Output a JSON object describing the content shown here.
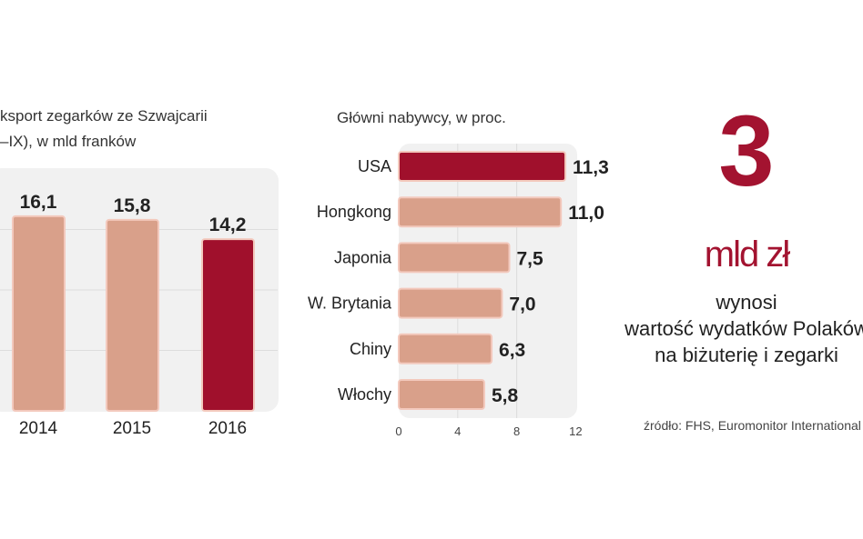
{
  "chart_data": [
    {
      "type": "bar",
      "title": "ksport zegarków ze Szwajcarii",
      "subtitle": "–IX), w mld franków",
      "categories": [
        "2014",
        "2015",
        "2016"
      ],
      "values": [
        16.1,
        15.8,
        14.2
      ],
      "value_labels": [
        "16,1",
        "15,8",
        "14,2"
      ],
      "highlight_index": 2,
      "ylim": [
        0,
        17
      ],
      "gridlines": [
        5,
        10,
        15
      ],
      "grid": true
    },
    {
      "type": "bar",
      "orientation": "horizontal",
      "title": "Główni nabywcy, w proc.",
      "categories": [
        "USA",
        "Hongkong",
        "Japonia",
        "W. Brytania",
        "Chiny",
        "Włochy"
      ],
      "values": [
        11.3,
        11.0,
        7.5,
        7.0,
        6.3,
        5.8
      ],
      "value_labels": [
        "11,3",
        "11,0",
        "7,5",
        "7,0",
        "6,3",
        "5,8"
      ],
      "highlight_index": 0,
      "xlim": [
        0,
        12
      ],
      "xticks": [
        "0",
        "4",
        "8",
        "12"
      ],
      "grid": true
    }
  ],
  "callout": {
    "number": "3",
    "unit": "mld zł",
    "lines": [
      "wynosi",
      "wartość wydatków Polaków",
      "na biżuterię i zegarki"
    ]
  },
  "source": "źródło: FHS, Euromonitor International",
  "colors": {
    "bar": "#d9a08a",
    "highlight": "#a0102c",
    "panel": "#f1f1f1",
    "grid": "#dddddd"
  }
}
